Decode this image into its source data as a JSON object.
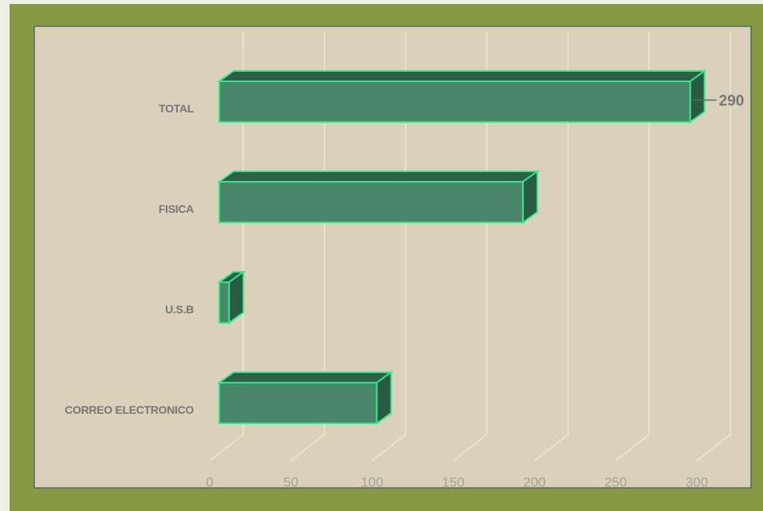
{
  "chart_data": {
    "type": "bar3d",
    "orientation": "horizontal",
    "categories": [
      "TOTAL",
      "FISICA",
      "U.S.B",
      "CORREO ELECTRONICO"
    ],
    "values": [
      290,
      187,
      6,
      97
    ],
    "value_labels": [
      "290",
      null,
      null,
      null
    ],
    "color": "#4a876a",
    "xlim": [
      0,
      300
    ],
    "xticks": [
      0,
      50,
      100,
      150,
      200,
      250,
      300
    ],
    "grid": true
  }
}
